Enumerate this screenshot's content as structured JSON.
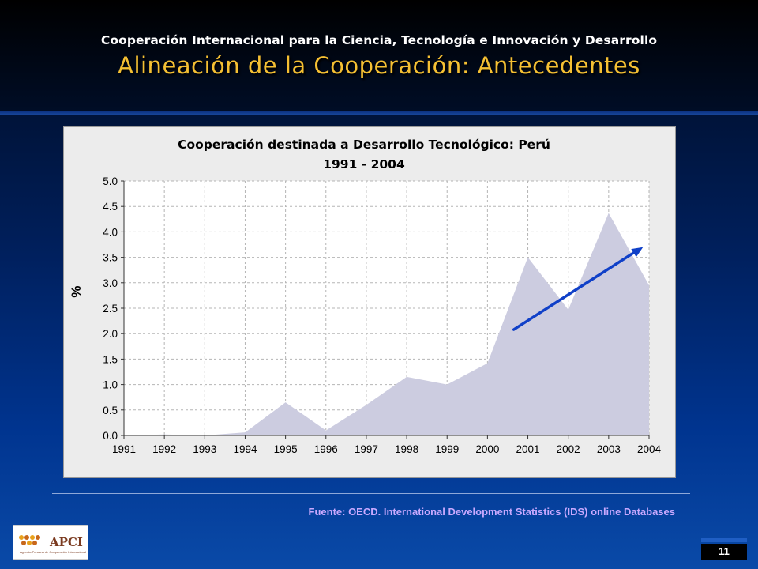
{
  "slide": {
    "supertitle": "Cooperación Internacional para la Ciencia, Tecnología e Innovación y Desarrollo",
    "title": "Alineación de la Cooperación: Antecedentes",
    "source": "Fuente: OECD. International Development Statistics (IDS) online Databases",
    "page_number": "11",
    "logo_text": "APCI",
    "logo_subtext": "Agencia Peruana de Cooperación Internacional"
  },
  "colors": {
    "title": "#f5c033",
    "area_fill": "#cccce0",
    "trend_arrow": "#1040c8"
  },
  "chart_data": {
    "type": "area",
    "title": "Cooperación destinada a Desarrollo Tecnológico: Perú",
    "subtitle": "1991 - 2004",
    "xlabel": "",
    "ylabel": "%",
    "categories": [
      "1991",
      "1992",
      "1993",
      "1994",
      "1995",
      "1996",
      "1997",
      "1998",
      "1999",
      "2000",
      "2001",
      "2002",
      "2003",
      "2004"
    ],
    "values": [
      0.0,
      0.02,
      0.0,
      0.06,
      0.65,
      0.1,
      0.6,
      1.15,
      1.0,
      1.42,
      3.5,
      2.47,
      4.37,
      2.95
    ],
    "ylim": [
      0,
      5
    ],
    "yticks": [
      "0.0",
      "0.5",
      "1.0",
      "1.5",
      "2.0",
      "2.5",
      "3.0",
      "3.5",
      "4.0",
      "4.5",
      "5.0"
    ],
    "grid": true,
    "annotation": {
      "type": "trend-arrow",
      "from": {
        "x": 2000.65,
        "y": 2.08
      },
      "to": {
        "x": 2003.85,
        "y": 3.7
      }
    }
  }
}
